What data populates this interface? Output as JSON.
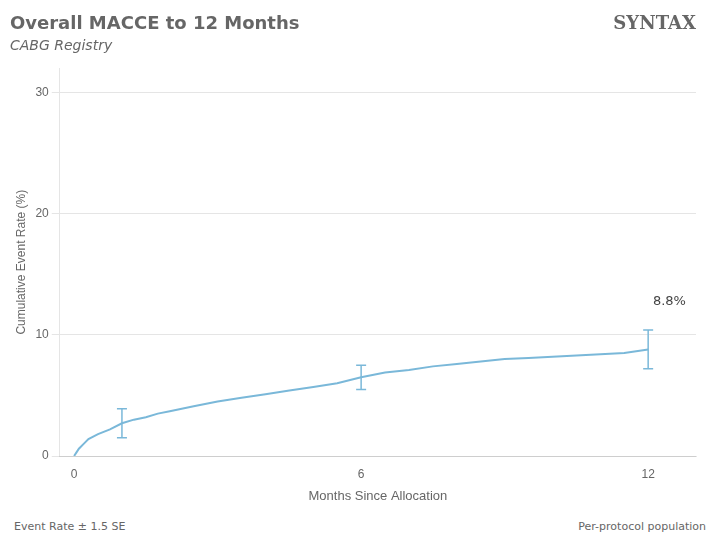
{
  "chart_data": {
    "type": "line",
    "title": "Overall MACCE to 12 Months",
    "subtitle": "CABG Registry",
    "xlabel": "Months Since Allocation",
    "ylabel": "Cumulative Event Rate (%)",
    "x": [
      0,
      0.05,
      0.1,
      0.2,
      0.3,
      0.5,
      0.75,
      1.0,
      1.25,
      1.5,
      1.75,
      2.0,
      2.5,
      3.0,
      3.5,
      4.0,
      4.5,
      5.0,
      5.5,
      6.0,
      6.5,
      7.0,
      7.5,
      8.0,
      8.5,
      9.0,
      9.5,
      10.0,
      10.5,
      11.0,
      11.5,
      12.0
    ],
    "values": [
      0,
      0.3,
      0.6,
      1.0,
      1.4,
      1.8,
      2.2,
      2.7,
      3.0,
      3.2,
      3.5,
      3.7,
      4.1,
      4.5,
      4.8,
      5.1,
      5.4,
      5.7,
      6.0,
      6.5,
      6.9,
      7.1,
      7.4,
      7.6,
      7.8,
      8.0,
      8.1,
      8.2,
      8.3,
      8.4,
      8.5,
      8.8
    ],
    "color": "#7ab8d9",
    "error_bars": [
      {
        "x": 1.0,
        "y": 2.7,
        "yerr": 1.2
      },
      {
        "x": 6.0,
        "y": 6.5,
        "yerr": 1.0
      },
      {
        "x": 12.0,
        "y": 8.8,
        "yerr": 1.6
      }
    ],
    "annotations": [
      {
        "text": "8.8%",
        "x": 12.1,
        "y": 12.2
      }
    ],
    "xlim": [
      -0.3,
      13
    ],
    "ylim": [
      0,
      32
    ],
    "xticks": [
      0,
      6,
      12
    ],
    "yticks": [
      0,
      10,
      20,
      30
    ],
    "grid": "y",
    "logo": "SYNTAX",
    "footer": [
      "Event Rate ±  1.5 SE",
      "Per-protocol population"
    ]
  }
}
